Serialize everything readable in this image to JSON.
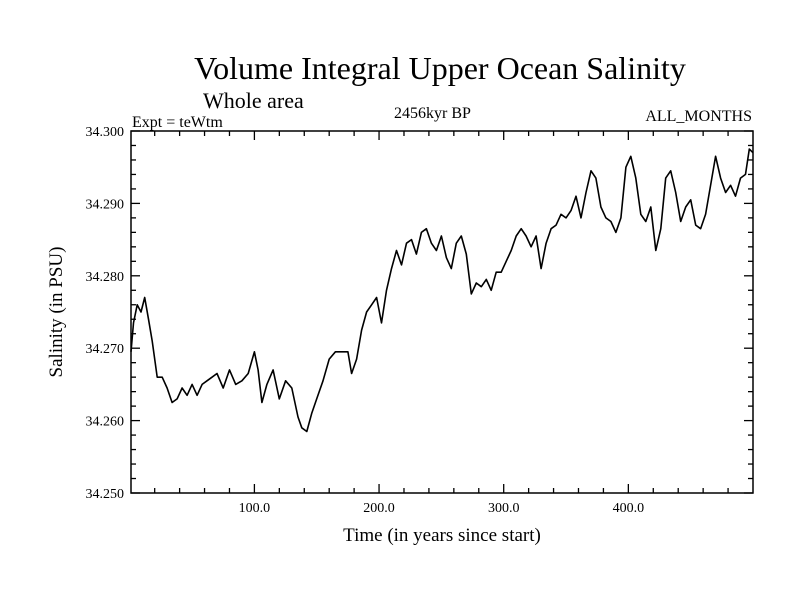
{
  "header": {
    "title": "Volume Integral Upper Ocean Salinity",
    "subtitle": "Whole area",
    "expt": "Expt = teWtm",
    "period": "2456kyr BP",
    "months": "ALL_MONTHS"
  },
  "chart_data": {
    "type": "line",
    "title": "Volume Integral Upper Ocean Salinity",
    "subtitle": "Whole area",
    "xlabel": "Time (in years since start)",
    "ylabel": "Salinity (in PSU)",
    "xlim": [
      1,
      500
    ],
    "ylim": [
      34.25,
      34.3
    ],
    "grid": false,
    "x_ticks": [
      100,
      200,
      300,
      400
    ],
    "x_tick_labels": [
      "100.0",
      "200.0",
      "300.0",
      "400.0"
    ],
    "y_ticks": [
      34.25,
      34.26,
      34.27,
      34.28,
      34.29,
      34.3
    ],
    "y_tick_labels": [
      "34.250",
      "34.260",
      "34.270",
      "34.280",
      "34.290",
      "34.300"
    ],
    "series": [
      {
        "name": "salinity",
        "color": "#000000",
        "x": [
          1,
          3,
          6,
          9,
          12,
          15,
          18,
          22,
          26,
          30,
          34,
          38,
          42,
          46,
          50,
          54,
          58,
          62,
          66,
          70,
          75,
          80,
          85,
          90,
          95,
          100,
          103,
          106,
          110,
          115,
          120,
          125,
          130,
          135,
          138,
          142,
          146,
          150,
          155,
          160,
          165,
          170,
          175,
          178,
          182,
          186,
          190,
          194,
          198,
          202,
          206,
          210,
          214,
          218,
          222,
          226,
          230,
          234,
          238,
          242,
          246,
          250,
          254,
          258,
          262,
          266,
          270,
          274,
          278,
          282,
          286,
          290,
          294,
          298,
          302,
          306,
          310,
          314,
          318,
          322,
          326,
          330,
          334,
          338,
          342,
          346,
          350,
          354,
          358,
          362,
          366,
          370,
          374,
          378,
          382,
          386,
          390,
          394,
          398,
          402,
          406,
          410,
          414,
          418,
          422,
          426,
          430,
          434,
          438,
          442,
          446,
          450,
          454,
          458,
          462,
          466,
          470,
          474,
          478,
          482,
          486,
          490,
          494,
          497,
          500
        ],
        "values": [
          34.2695,
          34.2735,
          34.276,
          34.275,
          34.277,
          34.274,
          34.271,
          34.266,
          34.266,
          34.2645,
          34.2625,
          34.263,
          34.2645,
          34.2635,
          34.265,
          34.2635,
          34.265,
          34.2655,
          34.266,
          34.2665,
          34.2645,
          34.267,
          34.265,
          34.2655,
          34.2665,
          34.2695,
          34.267,
          34.2625,
          34.265,
          34.267,
          34.263,
          34.2655,
          34.2645,
          34.2605,
          34.259,
          34.2585,
          34.261,
          34.263,
          34.2655,
          34.2685,
          34.2695,
          34.2695,
          34.2695,
          34.2665,
          34.2685,
          34.2725,
          34.275,
          34.276,
          34.277,
          34.2735,
          34.278,
          34.281,
          34.2835,
          34.2815,
          34.2845,
          34.285,
          34.283,
          34.286,
          34.2865,
          34.2845,
          34.2835,
          34.2855,
          34.2825,
          34.281,
          34.2845,
          34.2855,
          34.283,
          34.2775,
          34.279,
          34.2785,
          34.2795,
          34.278,
          34.2805,
          34.2805,
          34.282,
          34.2835,
          34.2855,
          34.2865,
          34.2855,
          34.284,
          34.2855,
          34.281,
          34.2845,
          34.2865,
          34.287,
          34.2885,
          34.288,
          34.289,
          34.291,
          34.288,
          34.2915,
          34.2945,
          34.2935,
          34.2895,
          34.288,
          34.2875,
          34.286,
          34.288,
          34.295,
          34.2965,
          34.2935,
          34.2885,
          34.2875,
          34.2895,
          34.2835,
          34.2865,
          34.2935,
          34.2945,
          34.2915,
          34.2875,
          34.2895,
          34.2905,
          34.287,
          34.2865,
          34.2885,
          34.2925,
          34.2965,
          34.2935,
          34.2915,
          34.2925,
          34.291,
          34.2935,
          34.294,
          34.2975,
          34.297
        ]
      }
    ]
  }
}
